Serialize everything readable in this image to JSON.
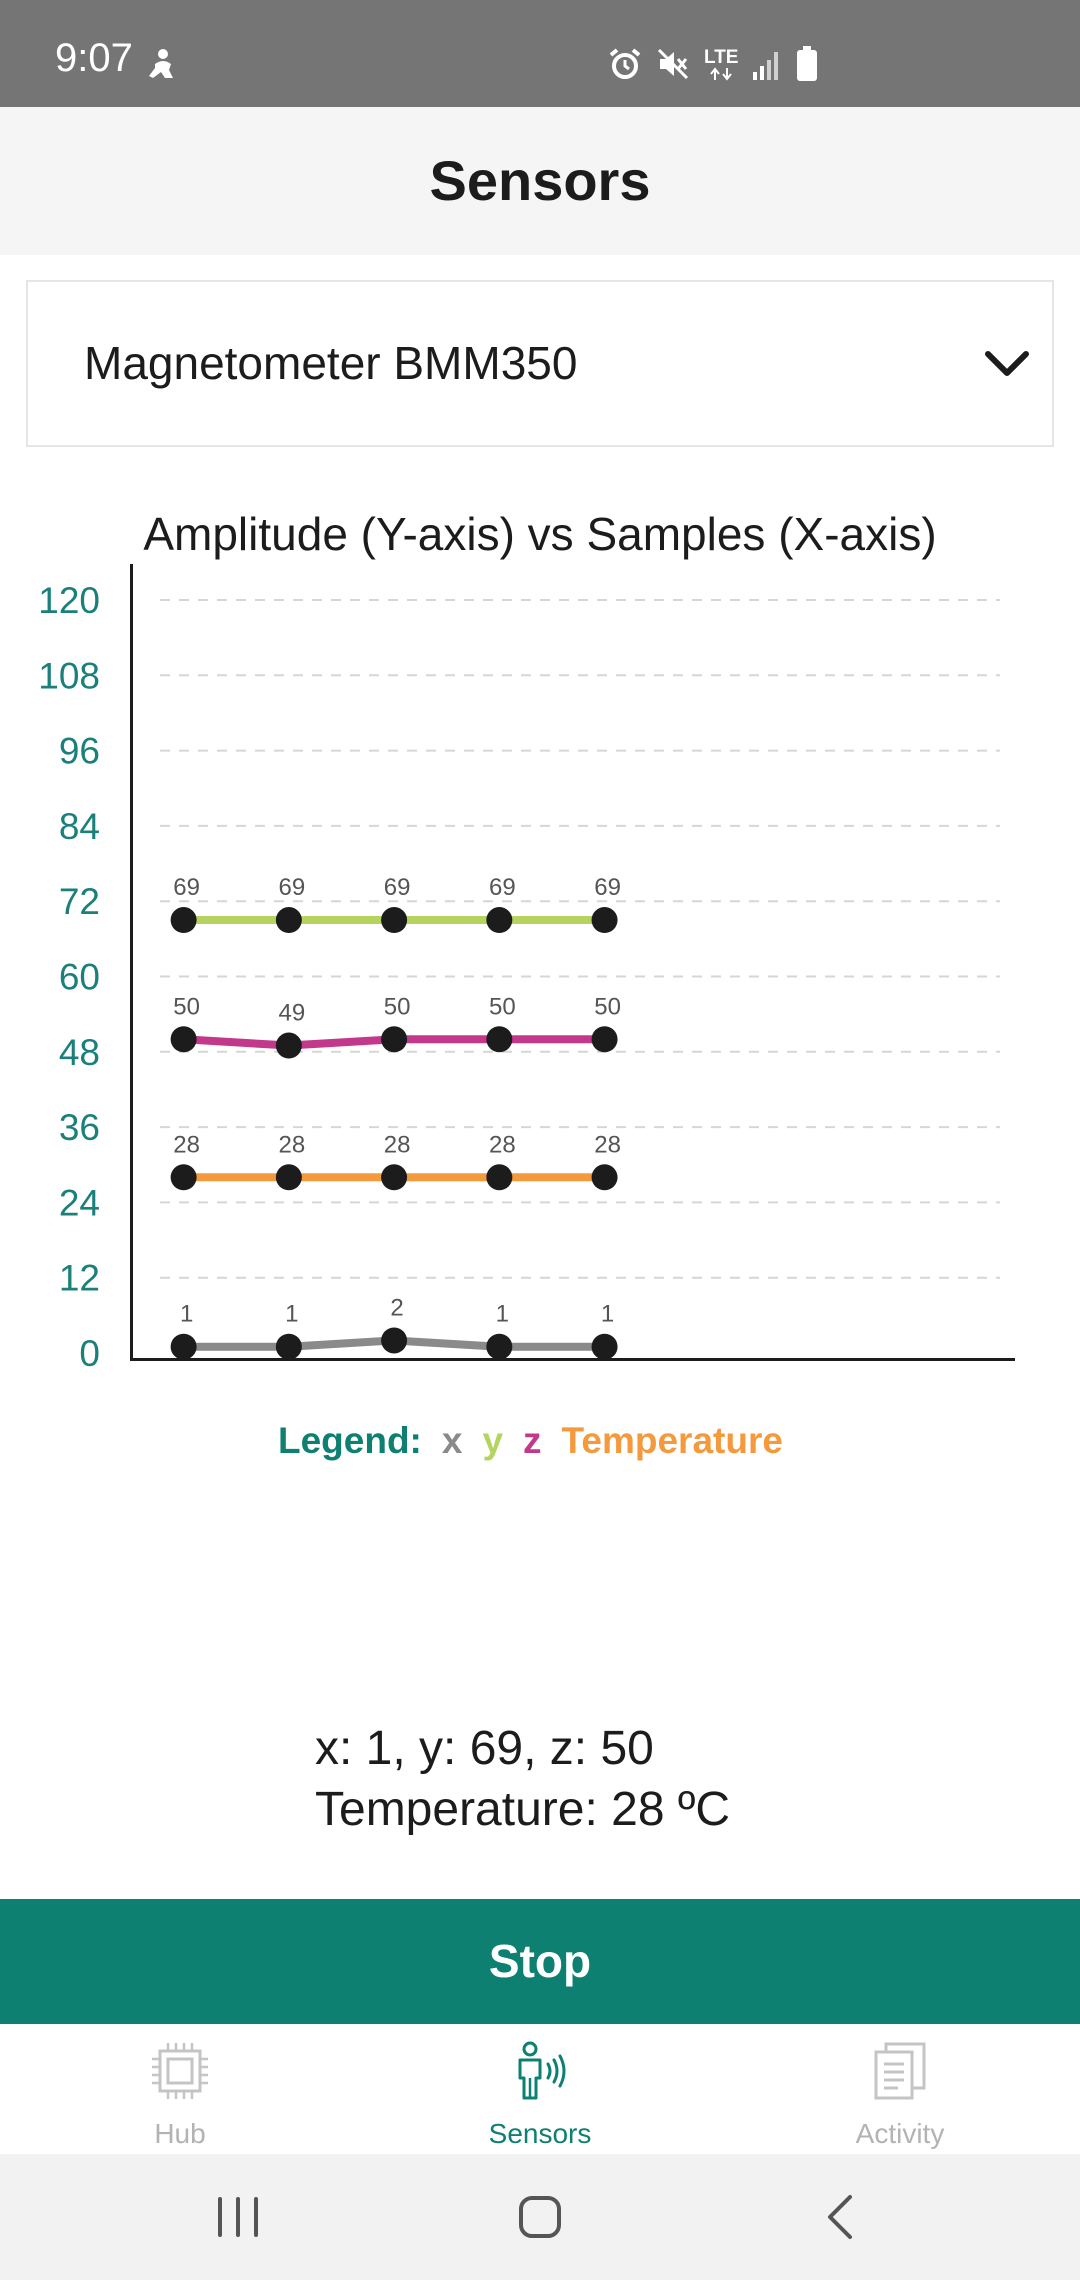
{
  "status_bar": {
    "time": "9:07",
    "network_label": "LTE",
    "icons": [
      "person-notification-icon",
      "alarm-icon",
      "mute-icon",
      "lte-icon",
      "signal-icon",
      "battery-icon"
    ]
  },
  "header": {
    "title": "Sensors"
  },
  "sensor_select": {
    "selected": "Magnetometer BMM350",
    "icon": "chevron-down-icon"
  },
  "chart_data": {
    "type": "line",
    "title": "Amplitude (Y-axis) vs Samples (X-axis)",
    "xlabel": "",
    "ylabel": "",
    "ylim": [
      0,
      120
    ],
    "yticks": [
      "0",
      "12",
      "24",
      "36",
      "48",
      "60",
      "72",
      "84",
      "96",
      "108",
      "120"
    ],
    "x": [
      1,
      2,
      3,
      4,
      5
    ],
    "xlim": [
      0.5,
      8.9
    ],
    "grid": true,
    "legend_placement": "bottom-center",
    "series": [
      {
        "name": "x",
        "color": "#8a8a8a",
        "values": [
          1,
          1,
          2,
          1,
          1
        ]
      },
      {
        "name": "y",
        "color": "#b5d45f",
        "values": [
          69,
          69,
          69,
          69,
          69
        ]
      },
      {
        "name": "z",
        "color": "#c2388b",
        "values": [
          50,
          49,
          50,
          50,
          50
        ]
      },
      {
        "name": "Temperature",
        "color": "#f59a3c",
        "values": [
          28,
          28,
          28,
          28,
          28
        ]
      }
    ]
  },
  "legend": {
    "title": "Legend:"
  },
  "readout": {
    "line1": "x: 1, y: 69, z: 50",
    "line2": "Temperature: 28 ºC"
  },
  "actions": {
    "stop_label": "Stop"
  },
  "bottom_nav": {
    "items": [
      {
        "label": "Hub",
        "icon": "chip-icon",
        "active": false
      },
      {
        "label": "Sensors",
        "icon": "person-sensor-icon",
        "active": true
      },
      {
        "label": "Activity",
        "icon": "documents-icon",
        "active": false
      }
    ]
  },
  "colors": {
    "accent": "#0e8072",
    "status_bar": "#757575",
    "header_bg": "#f5f5f5",
    "ytick": "#1b7f7a",
    "inactive_nav": "#b3b3b3"
  }
}
